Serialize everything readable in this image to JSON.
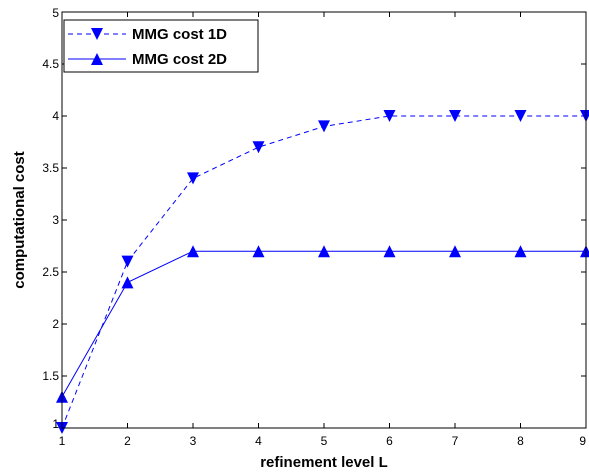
{
  "chart_data": {
    "type": "line",
    "title": "",
    "xlabel": "refinement level L",
    "ylabel": "computational cost",
    "xlim": [
      1,
      9
    ],
    "ylim": [
      1,
      5
    ],
    "xticks": [
      1,
      2,
      3,
      4,
      5,
      6,
      7,
      8,
      9
    ],
    "yticks": [
      1,
      1.5,
      2,
      2.5,
      3,
      3.5,
      4,
      4.5,
      5
    ],
    "ytick_labels": [
      "1",
      "1.5",
      "2",
      "2.5",
      "3",
      "3.5",
      "4",
      "4.5",
      "5"
    ],
    "x": [
      1,
      2,
      3,
      4,
      5,
      6,
      7,
      8,
      9
    ],
    "grid": false,
    "legend_position": "top-left",
    "series": [
      {
        "name": "MMG cost 1D",
        "values": [
          1.0,
          2.6,
          3.4,
          3.7,
          3.9,
          4.0,
          4.0,
          4.0,
          4.0
        ],
        "color": "#0000ff",
        "line_style": "dashed",
        "marker": "triangle-down"
      },
      {
        "name": "MMG cost 2D",
        "values": [
          1.3,
          2.4,
          2.7,
          2.7,
          2.7,
          2.7,
          2.7,
          2.7,
          2.7
        ],
        "color": "#0000ff",
        "line_style": "solid",
        "marker": "triangle-up"
      }
    ]
  }
}
